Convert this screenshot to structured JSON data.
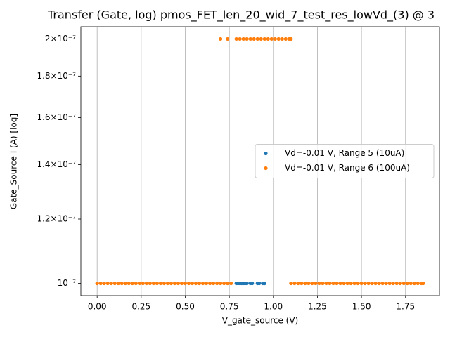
{
  "chart_data": {
    "type": "scatter",
    "title": "Transfer (Gate, log) pmos_FET_len_20_wid_7_test_res_lowVd_(3) @ 3",
    "xlabel": "V_gate_source (V)",
    "ylabel": "Gate_Source I (A) [log]",
    "yscale": "log",
    "xlim": [
      -0.0925,
      1.9425
    ],
    "ylim": [
      9.659e-08,
      2.0706e-07
    ],
    "xticks": [
      {
        "value": 0,
        "label": "0.00"
      },
      {
        "value": 0.25,
        "label": "0.25"
      },
      {
        "value": 0.5,
        "label": "0.50"
      },
      {
        "value": 0.75,
        "label": "0.75"
      },
      {
        "value": 1,
        "label": "1.00"
      },
      {
        "value": 1.25,
        "label": "1.25"
      },
      {
        "value": 1.5,
        "label": "1.50"
      },
      {
        "value": 1.75,
        "label": "1.75"
      }
    ],
    "yticks": [
      {
        "value": 1e-07,
        "label": "10⁻⁷"
      },
      {
        "value": 1.2e-07,
        "label": "1.2×10⁻⁷"
      },
      {
        "value": 1.4e-07,
        "label": "1.4×10⁻⁷"
      },
      {
        "value": 1.6e-07,
        "label": "1.6×10⁻⁷"
      },
      {
        "value": 1.8e-07,
        "label": "1.8×10⁻⁷"
      },
      {
        "value": 2e-07,
        "label": "2×10⁻⁷"
      }
    ],
    "grid": "x",
    "legend": "center right",
    "series": [
      {
        "name": "Vd=-0.01 V, Range 5 (10uA)",
        "color": "#1f77b4",
        "x": [
          0.79,
          0.8,
          0.81,
          0.82,
          0.83,
          0.84,
          0.85,
          0.87,
          0.88,
          0.91,
          0.92,
          0.94,
          0.95
        ],
        "y": [
          1e-07,
          1e-07,
          1e-07,
          1e-07,
          1e-07,
          1e-07,
          1e-07,
          1e-07,
          1e-07,
          1e-07,
          1e-07,
          1e-07,
          1e-07
        ]
      },
      {
        "name": "Vd=-0.01 V, Range 6 (100uA)",
        "color": "#ff7f0e",
        "x": [
          0,
          0.02,
          0.04,
          0.06,
          0.08,
          0.1,
          0.12,
          0.14,
          0.16,
          0.18,
          0.2,
          0.22,
          0.24,
          0.26,
          0.28,
          0.3,
          0.32,
          0.34,
          0.36,
          0.38,
          0.4,
          0.42,
          0.44,
          0.46,
          0.48,
          0.5,
          0.52,
          0.54,
          0.56,
          0.58,
          0.6,
          0.62,
          0.64,
          0.66,
          0.68,
          0.7,
          0.72,
          0.74,
          0.76,
          0.7,
          0.74,
          0.79,
          0.81,
          0.83,
          0.85,
          0.87,
          0.89,
          0.91,
          0.93,
          0.95,
          0.97,
          0.99,
          1.01,
          1.03,
          1.05,
          1.07,
          1.09,
          1.1,
          1.1,
          1.12,
          1.14,
          1.16,
          1.18,
          1.2,
          1.22,
          1.24,
          1.26,
          1.28,
          1.3,
          1.32,
          1.34,
          1.36,
          1.38,
          1.4,
          1.42,
          1.44,
          1.46,
          1.48,
          1.5,
          1.52,
          1.54,
          1.56,
          1.58,
          1.6,
          1.62,
          1.64,
          1.66,
          1.68,
          1.7,
          1.72,
          1.74,
          1.76,
          1.78,
          1.8,
          1.82,
          1.84,
          1.85
        ],
        "y": [
          1e-07,
          1e-07,
          1e-07,
          1e-07,
          1e-07,
          1e-07,
          1e-07,
          1e-07,
          1e-07,
          1e-07,
          1e-07,
          1e-07,
          1e-07,
          1e-07,
          1e-07,
          1e-07,
          1e-07,
          1e-07,
          1e-07,
          1e-07,
          1e-07,
          1e-07,
          1e-07,
          1e-07,
          1e-07,
          1e-07,
          1e-07,
          1e-07,
          1e-07,
          1e-07,
          1e-07,
          1e-07,
          1e-07,
          1e-07,
          1e-07,
          1e-07,
          1e-07,
          1e-07,
          1e-07,
          2e-07,
          2e-07,
          2e-07,
          2e-07,
          2e-07,
          2e-07,
          2e-07,
          2e-07,
          2e-07,
          2e-07,
          2e-07,
          2e-07,
          2e-07,
          2e-07,
          2e-07,
          2e-07,
          2e-07,
          2e-07,
          2e-07,
          1e-07,
          1e-07,
          1e-07,
          1e-07,
          1e-07,
          1e-07,
          1e-07,
          1e-07,
          1e-07,
          1e-07,
          1e-07,
          1e-07,
          1e-07,
          1e-07,
          1e-07,
          1e-07,
          1e-07,
          1e-07,
          1e-07,
          1e-07,
          1e-07,
          1e-07,
          1e-07,
          1e-07,
          1e-07,
          1e-07,
          1e-07,
          1e-07,
          1e-07,
          1e-07,
          1e-07,
          1e-07,
          1e-07,
          1e-07,
          1e-07,
          1e-07,
          1e-07,
          1e-07,
          1e-07
        ]
      }
    ]
  }
}
